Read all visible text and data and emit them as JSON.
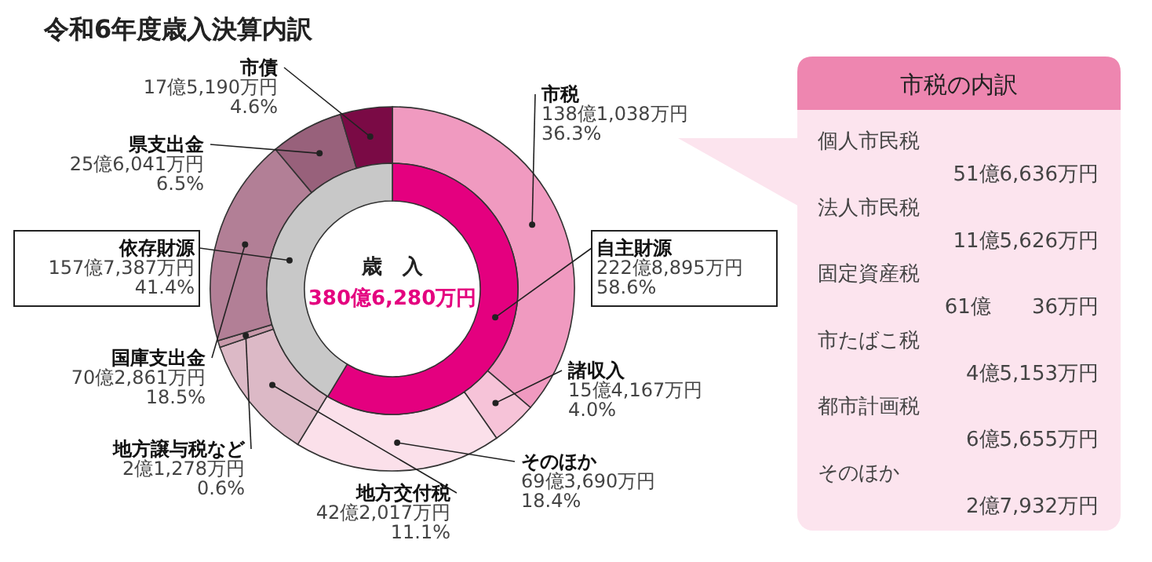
{
  "chart_data": [
    {
      "type": "donut",
      "title": "令和6年度歳入決算内訳",
      "categories": [
        "市税",
        "諸収入",
        "そのほか",
        "地方交付税",
        "地方譲与税など",
        "国庫支出金",
        "県支出金",
        "市債"
      ],
      "values": [
        36.3,
        4.0,
        18.4,
        11.1,
        0.6,
        18.5,
        6.5,
        4.6
      ],
      "colors": [
        "#f09ac0",
        "#f6c3d8",
        "#fbe0ea",
        "#dcb9c6",
        "#c899aa",
        "#b27f96",
        "#98617b",
        "#7a0a45"
      ],
      "value_labels": [
        "138億1,038万円\n36.3%",
        "15億4,167万円\n4.0%",
        "69億3,690万円\n18.4%",
        "42億2,017万円\n11.1%",
        "2億1,278万円\n0.6%",
        "70億2,861万円\n18.5%",
        "25億6,041万円\n6.5%",
        "17億5,190万円\n4.6%"
      ],
      "annotations": [
        "歳　入",
        "380億6,280万円"
      ]
    },
    {
      "type": "donut",
      "categories": [
        "自主財源",
        "依存財源"
      ],
      "values": [
        58.6,
        41.4
      ],
      "colors": [
        "#e4007f",
        "#c8c8c8"
      ],
      "value_labels": [
        "222億8,895万円\n58.6%",
        "157億7,387万円\n41.4%"
      ]
    },
    {
      "type": "other",
      "title": "市税の内訳",
      "annotations": [
        "個人市民税",
        "51億6,636万円",
        "法人市民税",
        "11億5,626万円",
        "固定資産税",
        "61億　　36万円",
        "市たばこ税",
        "4億5,153万円",
        "都市計画税",
        "6億5,655万円",
        "そのほか",
        "2億7,932万円"
      ]
    }
  ]
}
